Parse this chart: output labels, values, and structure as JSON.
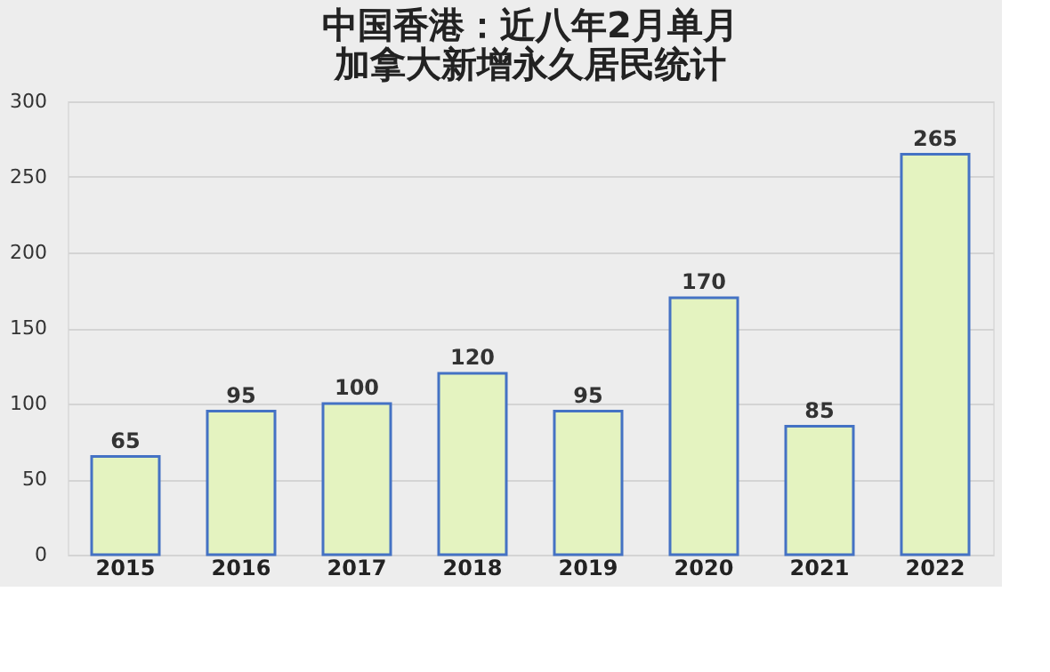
{
  "chart_data": {
    "type": "bar",
    "title": "中国香港：近八年2月单月加拿大新增永久居民统计",
    "categories": [
      "2015",
      "2016",
      "2017",
      "2018",
      "2019",
      "2020",
      "2021",
      "2022"
    ],
    "values": [
      65,
      95,
      100,
      120,
      95,
      170,
      85,
      265
    ],
    "color": "#e4f3c0",
    "ylim": [
      0,
      300
    ],
    "yticks": [
      0,
      50,
      100,
      150,
      200,
      250,
      300
    ],
    "grid": "y",
    "data_labels": true
  }
}
